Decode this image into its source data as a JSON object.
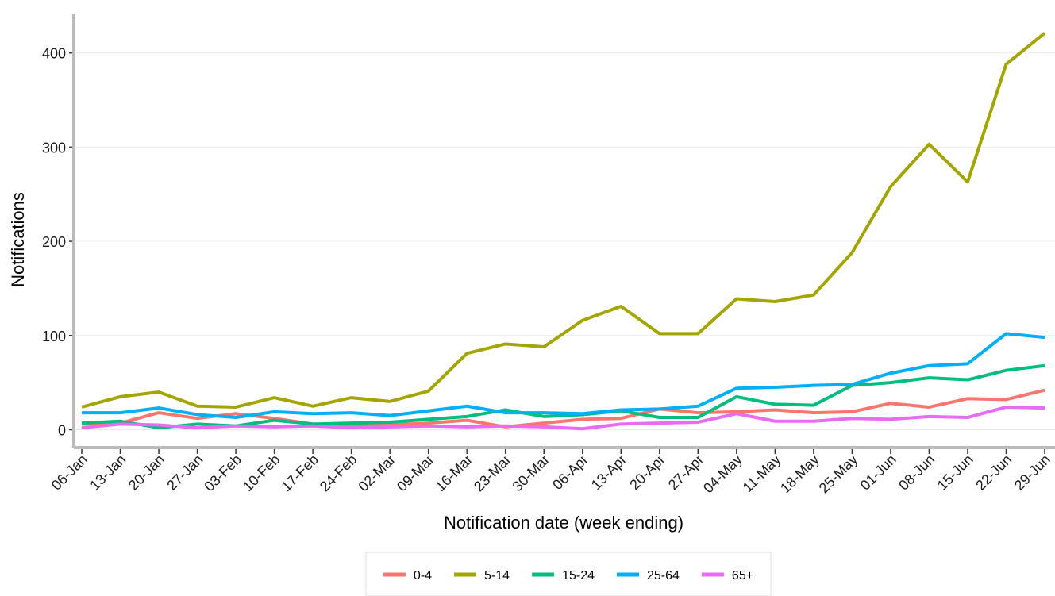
{
  "chart_data": {
    "type": "line",
    "x_label": "Notification date (week ending)",
    "y_label": "Notifications",
    "categories": [
      "06-Jan",
      "13-Jan",
      "20-Jan",
      "27-Jan",
      "03-Feb",
      "10-Feb",
      "17-Feb",
      "24-Feb",
      "02-Mar",
      "09-Mar",
      "16-Mar",
      "23-Mar",
      "30-Mar",
      "06-Apr",
      "13-Apr",
      "20-Apr",
      "27-Apr",
      "04-May",
      "11-May",
      "18-May",
      "25-May",
      "01-Jun",
      "08-Jun",
      "15-Jun",
      "22-Jun",
      "29-Jun"
    ],
    "series": [
      {
        "name": "0-4",
        "color": "#f8766d",
        "values": [
          6,
          7,
          18,
          12,
          17,
          12,
          6,
          5,
          5,
          7,
          10,
          3,
          7,
          11,
          12,
          22,
          18,
          19,
          21,
          18,
          19,
          28,
          24,
          33,
          32,
          42
        ]
      },
      {
        "name": "5-14",
        "color": "#a3a500",
        "values": [
          24,
          35,
          40,
          25,
          24,
          34,
          25,
          34,
          30,
          41,
          81,
          91,
          88,
          116,
          131,
          102,
          102,
          139,
          136,
          143,
          188,
          258,
          303,
          263,
          388,
          421
        ]
      },
      {
        "name": "15-24",
        "color": "#00bf7d",
        "values": [
          7,
          9,
          2,
          6,
          4,
          10,
          6,
          7,
          8,
          11,
          14,
          21,
          14,
          16,
          20,
          13,
          13,
          35,
          27,
          26,
          47,
          50,
          55,
          53,
          63,
          68
        ]
      },
      {
        "name": "25-64",
        "color": "#00b0f6",
        "values": [
          18,
          18,
          23,
          16,
          13,
          19,
          17,
          18,
          15,
          20,
          25,
          18,
          18,
          17,
          21,
          22,
          25,
          44,
          45,
          47,
          48,
          60,
          68,
          70,
          102,
          98
        ]
      },
      {
        "name": "65+",
        "color": "#e76bf3",
        "values": [
          2,
          6,
          5,
          2,
          4,
          3,
          4,
          2,
          3,
          4,
          3,
          4,
          3,
          1,
          6,
          7,
          8,
          17,
          9,
          9,
          12,
          11,
          14,
          13,
          24,
          23
        ]
      }
    ],
    "ylim": [
      -19,
      441
    ],
    "yticks": [
      0,
      100,
      200,
      300,
      400
    ],
    "grid": true,
    "legend": "bottom"
  }
}
